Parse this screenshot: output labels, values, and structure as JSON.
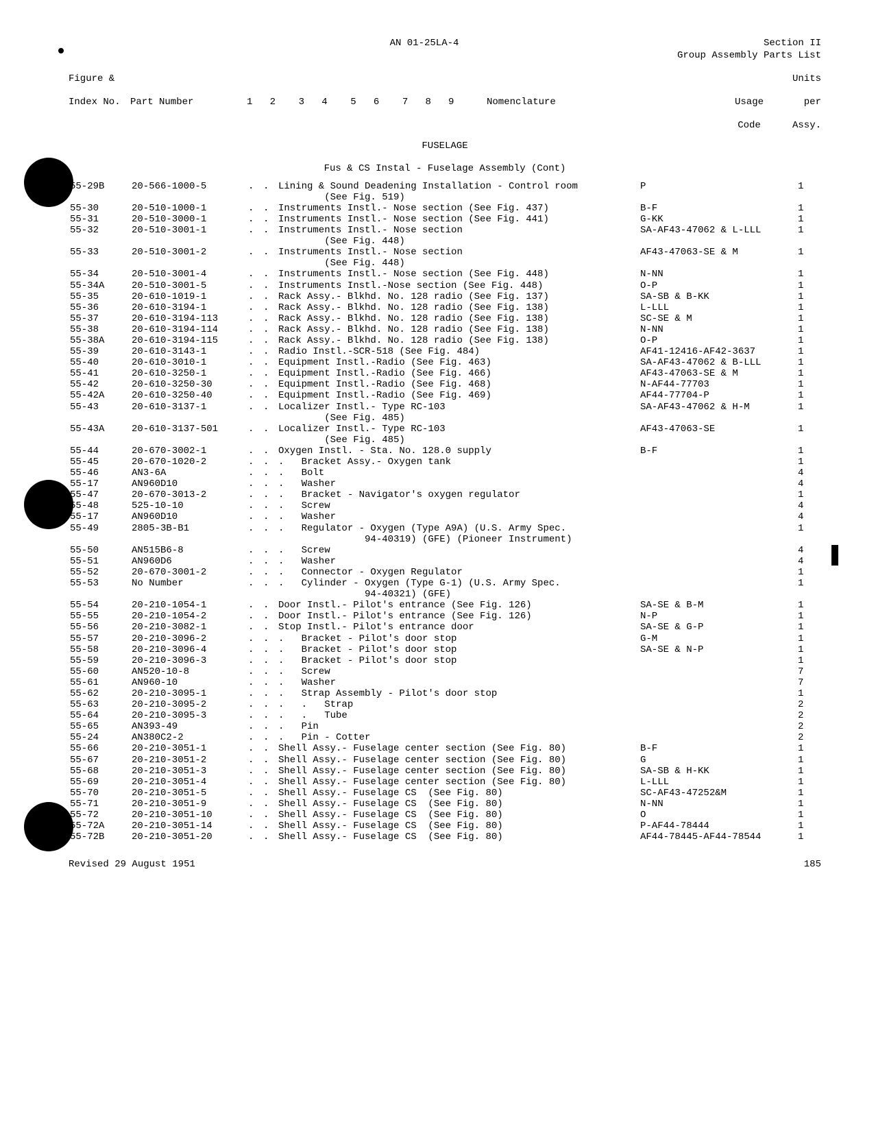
{
  "header": {
    "doc_no": "AN 01-25LA-4",
    "section": "Section II",
    "subtitle": "Group Assembly Parts List"
  },
  "columns": {
    "idx1": "Figure &",
    "idx2": "Index No.",
    "part": "Part Number",
    "nums": "1   2    3   4    5   6    7   8   9",
    "nom": "Nomenclature",
    "usage1": "Usage",
    "usage2": "Code",
    "units1": "Units",
    "units2": "per",
    "units3": "Assy."
  },
  "section_title": "FUSELAGE",
  "subtitle": "Fus & CS Instal - Fuselage Assembly (Cont)",
  "rows": [
    {
      "i": "55-29B",
      "p": "20-566-1000-5",
      "d1": ".",
      "d2": ".",
      "n": "Lining & Sound Deadening Installation - Control room",
      "u": "P",
      "q": "1"
    },
    {
      "i": "",
      "p": "",
      "d1": "",
      "d2": "",
      "n": "        (See Fig. 519)",
      "u": "",
      "q": ""
    },
    {
      "i": "55-30",
      "p": "20-510-1000-1",
      "d1": ".",
      "d2": ".",
      "n": "Instruments Instl.- Nose section (See Fig. 437)",
      "u": "B-F",
      "q": "1"
    },
    {
      "i": "55-31",
      "p": "20-510-3000-1",
      "d1": ".",
      "d2": ".",
      "n": "Instruments Instl.- Nose section (See Fig. 441)",
      "u": "G-KK",
      "q": "1"
    },
    {
      "i": "55-32",
      "p": "20-510-3001-1",
      "d1": ".",
      "d2": ".",
      "n": "Instruments Instl.- Nose section",
      "u": "SA-AF43-47062 & L-LLL",
      "q": "1"
    },
    {
      "i": "",
      "p": "",
      "d1": "",
      "d2": "",
      "n": "        (See Fig. 448)",
      "u": "",
      "q": ""
    },
    {
      "i": "55-33",
      "p": "20-510-3001-2",
      "d1": ".",
      "d2": ".",
      "n": "Instruments Instl.- Nose section",
      "u": "AF43-47063-SE & M",
      "q": "1"
    },
    {
      "i": "",
      "p": "",
      "d1": "",
      "d2": "",
      "n": "        (See Fig. 448)",
      "u": "",
      "q": ""
    },
    {
      "i": "55-34",
      "p": "20-510-3001-4",
      "d1": ".",
      "d2": ".",
      "n": "Instruments Instl.- Nose section (See Fig. 448)",
      "u": "N-NN",
      "q": "1"
    },
    {
      "i": "55-34A",
      "p": "20-510-3001-5",
      "d1": ".",
      "d2": ".",
      "n": "Instruments Instl.-Nose section (See Fig. 448)",
      "u": "O-P",
      "q": "1"
    },
    {
      "i": "55-35",
      "p": "20-610-1019-1",
      "d1": ".",
      "d2": ".",
      "n": "Rack Assy.- Blkhd. No. 128 radio (See Fig. 137)",
      "u": "SA-SB & B-KK",
      "q": "1"
    },
    {
      "i": "55-36",
      "p": "20-610-3194-1",
      "d1": ".",
      "d2": ".",
      "n": "Rack Assy.- Blkhd. No. 128 radio (See Fig. 138)",
      "u": "L-LLL",
      "q": "1"
    },
    {
      "i": "55-37",
      "p": "20-610-3194-113",
      "d1": ".",
      "d2": ".",
      "n": "Rack Assy.- Blkhd. No. 128 radio (See Fig. 138)",
      "u": "SC-SE & M",
      "q": "1"
    },
    {
      "i": "55-38",
      "p": "20-610-3194-114",
      "d1": ".",
      "d2": ".",
      "n": "Rack Assy.- Blkhd. No. 128 radio (See Fig. 138)",
      "u": "N-NN",
      "q": "1"
    },
    {
      "i": "55-38A",
      "p": "20-610-3194-115",
      "d1": ".",
      "d2": ".",
      "n": "Rack Assy.- Blkhd. No. 128 radio (See Fig. 138)",
      "u": "O-P",
      "q": "1"
    },
    {
      "i": "55-39",
      "p": "20-610-3143-1",
      "d1": ".",
      "d2": ".",
      "n": "Radio Instl.-SCR-518 (See Fig. 484)",
      "u": "AF41-12416-AF42-3637",
      "q": "1"
    },
    {
      "i": "55-40",
      "p": "20-610-3010-1",
      "d1": ".",
      "d2": ".",
      "n": "Equipment Instl.-Radio (See Fig. 463)",
      "u": "SA-AF43-47062 & B-LLL",
      "q": "1"
    },
    {
      "i": "55-41",
      "p": "20-610-3250-1",
      "d1": ".",
      "d2": ".",
      "n": "Equipment Instl.-Radio (See Fig. 466)",
      "u": "AF43-47063-SE & M",
      "q": "1"
    },
    {
      "i": "55-42",
      "p": "20-610-3250-30",
      "d1": ".",
      "d2": ".",
      "n": "Equipment Instl.-Radio (See Fig. 468)",
      "u": "N-AF44-77703",
      "q": "1"
    },
    {
      "i": "55-42A",
      "p": "20-610-3250-40",
      "d1": ".",
      "d2": ".",
      "n": "Equipment Instl.-Radio (See Fig. 469)",
      "u": "AF44-77704-P",
      "q": "1"
    },
    {
      "i": "55-43",
      "p": "20-610-3137-1",
      "d1": ".",
      "d2": ".",
      "n": "Localizer Instl.- Type RC-103",
      "u": "SA-AF43-47062 & H-M",
      "q": "1"
    },
    {
      "i": "",
      "p": "",
      "d1": "",
      "d2": "",
      "n": "        (See Fig. 485)",
      "u": "",
      "q": ""
    },
    {
      "i": "55-43A",
      "p": "20-610-3137-501",
      "d1": ".",
      "d2": ".",
      "n": "Localizer Instl.- Type RC-103",
      "u": "AF43-47063-SE",
      "q": "1"
    },
    {
      "i": "",
      "p": "",
      "d1": "",
      "d2": "",
      "n": "        (See Fig. 485)",
      "u": "",
      "q": ""
    },
    {
      "i": "55-44",
      "p": "20-670-3002-1",
      "d1": ".",
      "d2": ".",
      "n": "Oxygen Instl. - Sta. No. 128.0 supply",
      "u": "B-F",
      "q": "1"
    },
    {
      "i": "55-45",
      "p": "20-670-1020-2",
      "d1": ".",
      "d2": ".",
      "n": ".   Bracket Assy.- Oxygen tank",
      "u": "",
      "q": "1"
    },
    {
      "i": "55-46",
      "p": "AN3-6A",
      "d1": ".",
      "d2": ".",
      "n": ".   Bolt",
      "u": "",
      "q": "4"
    },
    {
      "i": "55-17",
      "p": "AN960D10",
      "d1": ".",
      "d2": ".",
      "n": ".   Washer",
      "u": "",
      "q": "4"
    },
    {
      "i": "55-47",
      "p": "20-670-3013-2",
      "d1": ".",
      "d2": ".",
      "n": ".   Bracket - Navigator's oxygen regulator",
      "u": "",
      "q": "1"
    },
    {
      "i": "55-48",
      "p": "525-10-10",
      "d1": ".",
      "d2": ".",
      "n": ".   Screw",
      "u": "",
      "q": "4"
    },
    {
      "i": "55-17",
      "p": "AN960D10",
      "d1": ".",
      "d2": ".",
      "n": ".   Washer",
      "u": "",
      "q": "4"
    },
    {
      "i": "55-49",
      "p": "2805-3B-B1",
      "d1": ".",
      "d2": ".",
      "n": ".   Regulator - Oxygen (Type A9A) (U.S. Army Spec.",
      "u": "",
      "q": "1"
    },
    {
      "i": "",
      "p": "",
      "d1": "",
      "d2": "",
      "n": "               94-40319) (GFE) (Pioneer Instrument)",
      "u": "",
      "q": ""
    },
    {
      "i": "55-50",
      "p": "AN515B6-8",
      "d1": ".",
      "d2": ".",
      "n": ".   Screw",
      "u": "",
      "q": "4"
    },
    {
      "i": "55-51",
      "p": "AN960D6",
      "d1": ".",
      "d2": ".",
      "n": ".   Washer",
      "u": "",
      "q": "4"
    },
    {
      "i": "55-52",
      "p": "20-670-3001-2",
      "d1": ".",
      "d2": ".",
      "n": ".   Connector - Oxygen Regulator",
      "u": "",
      "q": "1"
    },
    {
      "i": "55-53",
      "p": "No Number",
      "d1": ".",
      "d2": ".",
      "n": ".   Cylinder - Oxygen (Type G-1) (U.S. Army Spec.",
      "u": "",
      "q": "1"
    },
    {
      "i": "",
      "p": "",
      "d1": "",
      "d2": "",
      "n": "               94-40321) (GFE)",
      "u": "",
      "q": ""
    },
    {
      "i": "55-54",
      "p": "20-210-1054-1",
      "d1": ".",
      "d2": ".",
      "n": "Door Instl.- Pilot's entrance (See Fig. 126)",
      "u": "SA-SE & B-M",
      "q": "1"
    },
    {
      "i": "55-55",
      "p": "20-210-1054-2",
      "d1": ".",
      "d2": ".",
      "n": "Door Instl.- Pilot's entrance (See Fig. 126)",
      "u": "N-P",
      "q": "1"
    },
    {
      "i": "55-56",
      "p": "20-210-3082-1",
      "d1": ".",
      "d2": ".",
      "n": "Stop Instl.- Pilot's entrance door",
      "u": "SA-SE & G-P",
      "q": "1"
    },
    {
      "i": "55-57",
      "p": "20-210-3096-2",
      "d1": ".",
      "d2": ".",
      "n": ".   Bracket - Pilot's door stop",
      "u": "G-M",
      "q": "1"
    },
    {
      "i": "55-58",
      "p": "20-210-3096-4",
      "d1": ".",
      "d2": ".",
      "n": ".   Bracket - Pilot's door stop",
      "u": "SA-SE & N-P",
      "q": "1"
    },
    {
      "i": "55-59",
      "p": "20-210-3096-3",
      "d1": ".",
      "d2": ".",
      "n": ".   Bracket - Pilot's door stop",
      "u": "",
      "q": "1"
    },
    {
      "i": "55-60",
      "p": "AN520-10-8",
      "d1": ".",
      "d2": ".",
      "n": ".   Screw",
      "u": "",
      "q": "7"
    },
    {
      "i": "55-61",
      "p": "AN960-10",
      "d1": ".",
      "d2": ".",
      "n": ".   Washer",
      "u": "",
      "q": "7"
    },
    {
      "i": "55-62",
      "p": "20-210-3095-1",
      "d1": ".",
      "d2": ".",
      "n": ".   Strap Assembly - Pilot's door stop",
      "u": "",
      "q": "1"
    },
    {
      "i": "55-63",
      "p": "20-210-3095-2",
      "d1": ".",
      "d2": ".",
      "n": ".   .   Strap",
      "u": "",
      "q": "2"
    },
    {
      "i": "55-64",
      "p": "20-210-3095-3",
      "d1": ".",
      "d2": ".",
      "n": ".   .   Tube",
      "u": "",
      "q": "2"
    },
    {
      "i": "55-65",
      "p": "AN393-49",
      "d1": ".",
      "d2": ".",
      "n": ".   Pin",
      "u": "",
      "q": "2"
    },
    {
      "i": "55-24",
      "p": "AN380C2-2",
      "d1": ".",
      "d2": ".",
      "n": ".   Pin - Cotter",
      "u": "",
      "q": "2"
    },
    {
      "i": "55-66",
      "p": "20-210-3051-1",
      "d1": ".",
      "d2": ".",
      "n": "Shell Assy.- Fuselage center section (See Fig. 80)",
      "u": "B-F",
      "q": "1"
    },
    {
      "i": "55-67",
      "p": "20-210-3051-2",
      "d1": ".",
      "d2": ".",
      "n": "Shell Assy.- Fuselage center section (See Fig. 80)",
      "u": "G",
      "q": "1"
    },
    {
      "i": "55-68",
      "p": "20-210-3051-3",
      "d1": ".",
      "d2": ".",
      "n": "Shell Assy.- Fuselage center section (See Fig. 80)",
      "u": "SA-SB & H-KK",
      "q": "1"
    },
    {
      "i": "55-69",
      "p": "20-210-3051-4",
      "d1": ".",
      "d2": ".",
      "n": "Shell Assy.- Fuselage center section (See Fig. 80)",
      "u": "L-LLL",
      "q": "1"
    },
    {
      "i": "55-70",
      "p": "20-210-3051-5",
      "d1": ".",
      "d2": ".",
      "n": "Shell Assy.- Fuselage CS  (See Fig. 80)",
      "u": "SC-AF43-47252&M",
      "q": "1"
    },
    {
      "i": "55-71",
      "p": "20-210-3051-9",
      "d1": ".",
      "d2": ".",
      "n": "Shell Assy.- Fuselage CS  (See Fig. 80)",
      "u": "N-NN",
      "q": "1"
    },
    {
      "i": "55-72",
      "p": "20-210-3051-10",
      "d1": ".",
      "d2": ".",
      "n": "Shell Assy.- Fuselage CS  (See Fig. 80)",
      "u": "O",
      "q": "1"
    },
    {
      "i": "55-72A",
      "p": "20-210-3051-14",
      "d1": ".",
      "d2": ".",
      "n": "Shell Assy.- Fuselage CS  (See Fig. 80)",
      "u": "P-AF44-78444",
      "q": "1"
    },
    {
      "i": "55-72B",
      "p": "20-210-3051-20",
      "d1": ".",
      "d2": ".",
      "n": "Shell Assy.- Fuselage CS  (See Fig. 80)",
      "u": "AF44-78445-AF44-78544",
      "q": "1"
    }
  ],
  "footer": {
    "revised": "Revised 29 August 1951",
    "page": "185"
  }
}
